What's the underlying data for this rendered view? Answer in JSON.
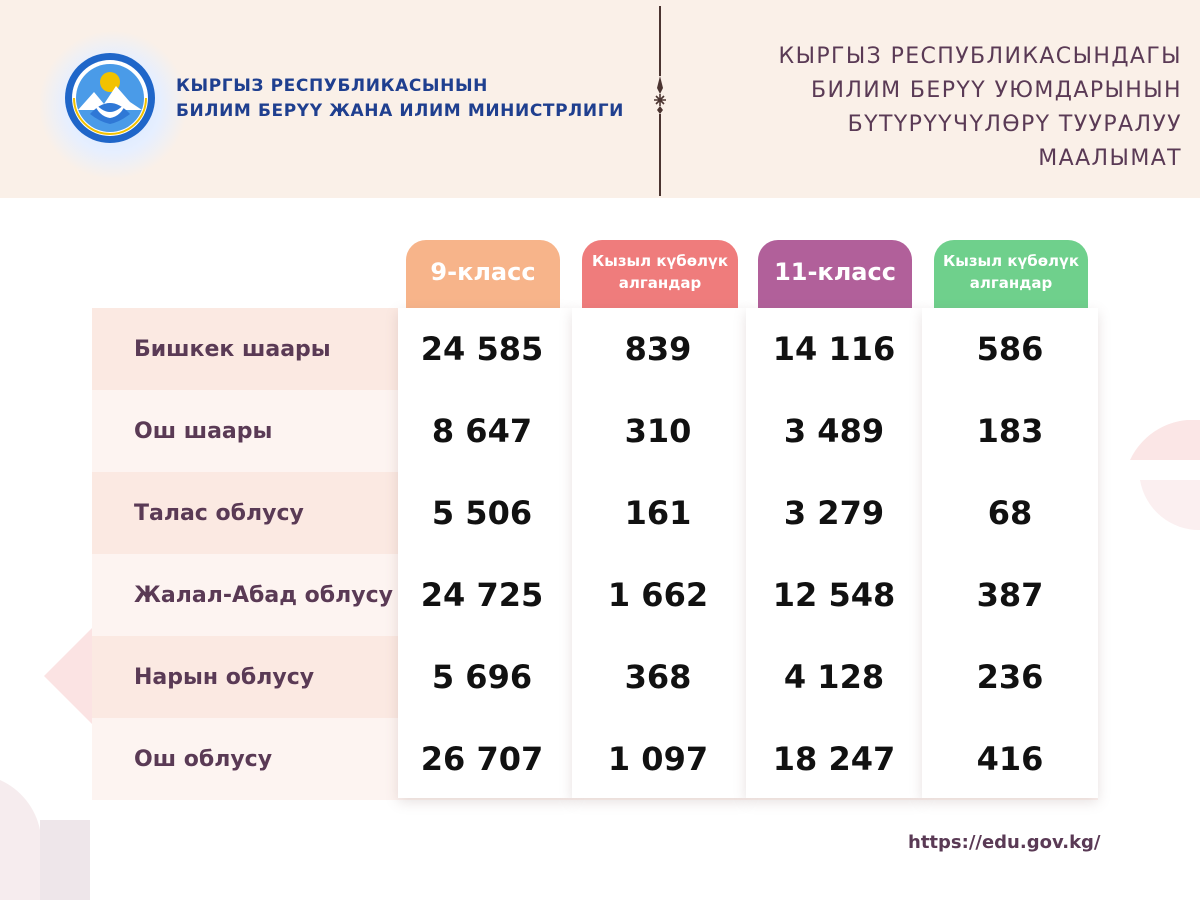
{
  "header": {
    "ministry_line1": "КЫРГЫЗ РЕСПУБЛИКАСЫНЫН",
    "ministry_line2": "БИЛИМ БЕРҮҮ ЖАНА ИЛИМ МИНИСТРЛИГИ",
    "title_lines": [
      "КЫРГЫЗ РЕСПУБЛИКАСЫНДАГЫ",
      "БИЛИМ БЕРҮҮ УЮМДАРЫНЫН",
      "БҮТҮРҮҮЧҮЛӨРҮ ТУУРАЛУУ",
      "МААЛЫМАТ"
    ]
  },
  "logo": {
    "icon": "state-emblem-icon"
  },
  "table": {
    "columns": [
      {
        "label": "9-класс",
        "color": "#f7b48a"
      },
      {
        "label": "Кызыл күбөлүк алгандар",
        "color": "#ef7c7c"
      },
      {
        "label": "11-класс",
        "color": "#b1609a"
      },
      {
        "label": "Кызыл күбөлүк алгандар",
        "color": "#6fd08c"
      }
    ],
    "rows": [
      {
        "region": "Бишкек шаары",
        "values": [
          "24 585",
          "839",
          "14 116",
          "586"
        ]
      },
      {
        "region": "Ош шаары",
        "values": [
          "8 647",
          "310",
          "3 489",
          "183"
        ]
      },
      {
        "region": "Талас облусу",
        "values": [
          "5 506",
          "161",
          "3 279",
          "68"
        ]
      },
      {
        "region": "Жалал-Абад облусу",
        "values": [
          "24 725",
          "1 662",
          "12 548",
          "387"
        ]
      },
      {
        "region": "Нарын облусу",
        "values": [
          "5 696",
          "368",
          "4 128",
          "236"
        ]
      },
      {
        "region": "Ош облусу",
        "values": [
          "26 707",
          "1 097",
          "18 247",
          "416"
        ]
      }
    ]
  },
  "footer": {
    "url": "https://edu.gov.kg/"
  },
  "colors": {
    "header_bg": "#faf0e8",
    "row_even": "#fbe9e2",
    "row_odd": "#fdf4f1",
    "text_dark": "#5a3a55",
    "ministry_blue": "#1f3f8f"
  }
}
